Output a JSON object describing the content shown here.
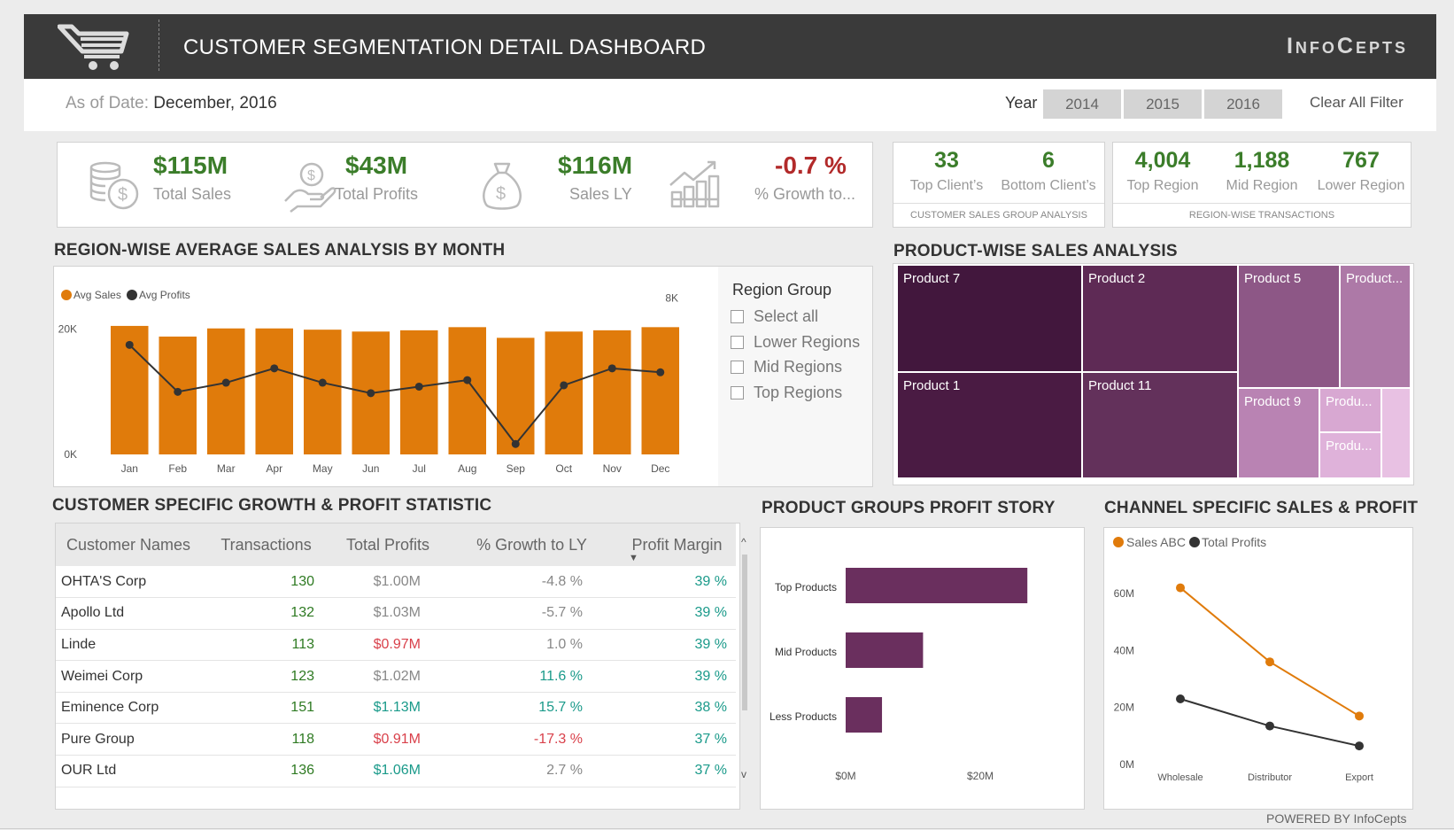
{
  "header": {
    "title": "CUSTOMER SEGMENTATION DETAIL DASHBOARD",
    "brand": "InfoCepts"
  },
  "filter": {
    "as_of_label": "As of Date:",
    "as_of_value": "December, 2016",
    "year_label": "Year",
    "years": [
      "2014",
      "2015",
      "2016"
    ],
    "clear": "Clear All Filter"
  },
  "kpis": [
    {
      "value": "$115M",
      "label": "Total Sales",
      "icon": "coins-dollar-icon"
    },
    {
      "value": "$43M",
      "label": "Total Profits",
      "icon": "hand-dollar-icon"
    },
    {
      "value": "$116M",
      "label": "Sales LY",
      "icon": "money-bag-icon"
    },
    {
      "value": "-0.7 %",
      "label": "% Growth to...",
      "icon": "growth-chart-icon"
    }
  ],
  "client_cards": {
    "items": [
      {
        "value": "33",
        "label": "Top Client’s"
      },
      {
        "value": "6",
        "label": "Bottom Client’s"
      }
    ],
    "footer": "CUSTOMER SALES GROUP ANALYSIS"
  },
  "region_cards": {
    "items": [
      {
        "value": "4,004",
        "label": "Top Region"
      },
      {
        "value": "1,188",
        "label": "Mid Region"
      },
      {
        "value": "767",
        "label": "Lower Region"
      }
    ],
    "footer": "REGION-WISE TRANSACTIONS"
  },
  "region_chart_title": "REGION-WISE AVERAGE SALES ANALYSIS BY MONTH",
  "region_group": {
    "title": "Region Group",
    "options": [
      "Select all",
      "Lower Regions",
      "Mid Regions",
      "Top Regions"
    ]
  },
  "product_chart_title": "PRODUCT-WISE SALES ANALYSIS",
  "treemap": [
    {
      "label": "Product 7"
    },
    {
      "label": "Product 1"
    },
    {
      "label": "Product 2"
    },
    {
      "label": "Product 11"
    },
    {
      "label": "Product 5"
    },
    {
      "label": "Product..."
    },
    {
      "label": "Product 9"
    },
    {
      "label": "Produ..."
    },
    {
      "label": "Produ..."
    }
  ],
  "table_title": "CUSTOMER SPECIFIC GROWTH & PROFIT STATISTIC",
  "table": {
    "headers": [
      "Customer Names",
      "Transactions",
      "Total Profits",
      "% Growth to LY",
      "Profit Margin"
    ],
    "rows": [
      [
        "OHTA'S Corp",
        "130",
        "$1.00M",
        "-4.8 %",
        "39 %"
      ],
      [
        "Apollo Ltd",
        "132",
        "$1.03M",
        "-5.7 %",
        "39 %"
      ],
      [
        "Linde",
        "113",
        "$0.97M",
        "1.0 %",
        "39 %"
      ],
      [
        "Weimei Corp",
        "123",
        "$1.02M",
        "11.6 %",
        "39 %"
      ],
      [
        "Eminence Corp",
        "151",
        "$1.13M",
        "15.7 %",
        "38 %"
      ],
      [
        "Pure Group",
        "118",
        "$0.91M",
        "-17.3 %",
        "37 %"
      ],
      [
        "OUR Ltd",
        "136",
        "$1.06M",
        "2.7 %",
        "37 %"
      ]
    ],
    "profit_colors": [
      "grey",
      "grey",
      "red",
      "grey",
      "teal",
      "red",
      "teal"
    ],
    "growth_colors": [
      "grey",
      "grey",
      "grey",
      "teal",
      "teal",
      "red",
      "grey"
    ]
  },
  "groups_title": "PRODUCT GROUPS PROFIT STORY",
  "channel_title": "CHANNEL SPECIFIC SALES & PROFIT",
  "footer": "POWERED BY InfoCepts",
  "chart_data": [
    {
      "type": "bar",
      "categories": [
        "Jan",
        "Feb",
        "Mar",
        "Apr",
        "May",
        "Jun",
        "Jul",
        "Aug",
        "Sep",
        "Oct",
        "Nov",
        "Dec"
      ],
      "series": [
        {
          "name": "Avg Sales",
          "type": "bar",
          "axis": "left",
          "values": [
            20500,
            18800,
            20100,
            20100,
            19900,
            19600,
            19800,
            20300,
            18600,
            19600,
            19800,
            20300
          ]
        },
        {
          "name": "Avg Profits",
          "type": "line",
          "axis": "right",
          "values": [
            7640,
            7280,
            7350,
            7460,
            7350,
            7270,
            7320,
            7370,
            6880,
            7330,
            7460,
            7430
          ]
        }
      ],
      "ylim": [
        0,
        26000
      ],
      "ylim_right": [
        6800,
        8050
      ],
      "yticks_left": [
        "0K",
        "20K"
      ],
      "yticks_right": [
        "7K",
        "8K"
      ],
      "colors": {
        "Avg Sales": "#e07b0b",
        "Avg Profits": "#333333"
      },
      "legend": "top-left"
    },
    {
      "type": "bar",
      "orientation": "horizontal",
      "categories": [
        "Top Products",
        "Mid Products",
        "Less Products"
      ],
      "values": [
        27000,
        11500,
        5400
      ],
      "xlim": [
        0,
        32000
      ],
      "xticks": [
        "$0M",
        "$20M"
      ],
      "color": "#6a2f5e"
    },
    {
      "type": "line",
      "categories": [
        "Wholesale",
        "Distributor",
        "Export"
      ],
      "series": [
        {
          "name": "Sales ABC",
          "values": [
            62,
            36,
            17
          ]
        },
        {
          "name": "Total Profits",
          "values": [
            23,
            13.5,
            6.5
          ]
        }
      ],
      "ylim": [
        0,
        70
      ],
      "yticks": [
        "0M",
        "20M",
        "40M",
        "60M"
      ],
      "colors": {
        "Sales ABC": "#e07b0b",
        "Total Profits": "#333333"
      },
      "legend": "top-left"
    },
    {
      "type": "treemap",
      "labels": [
        "Product 7",
        "Product 1",
        "Product 2",
        "Product 11",
        "Product 5",
        "Product...",
        "Product 9",
        "Produ...",
        "Produ..."
      ]
    }
  ]
}
